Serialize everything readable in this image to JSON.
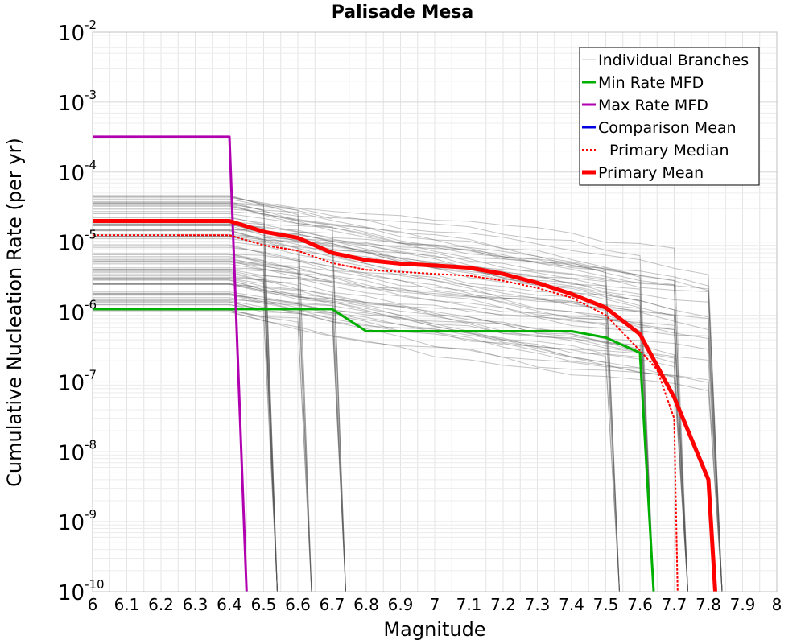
{
  "chart_data": {
    "type": "line",
    "title": "Palisade Mesa",
    "xlabel": "Magnitude",
    "ylabel": "Cumulative Nucleation Rate (per yr)",
    "xlim": [
      6.0,
      8.0
    ],
    "ylim": [
      1e-10,
      0.01
    ],
    "y_scale": "log",
    "grid": true,
    "legend_position": "top-right",
    "x_ticks": [
      "6",
      "6.1",
      "6.2",
      "6.3",
      "6.4",
      "6.5",
      "6.6",
      "6.7",
      "6.8",
      "6.9",
      "7",
      "7.1",
      "7.2",
      "7.3",
      "7.4",
      "7.5",
      "7.6",
      "7.7",
      "7.8",
      "7.9",
      "8"
    ],
    "y_ticks": [
      {
        "base": "10",
        "exp": "-10"
      },
      {
        "base": "10",
        "exp": "-9"
      },
      {
        "base": "10",
        "exp": "-8"
      },
      {
        "base": "10",
        "exp": "-7"
      },
      {
        "base": "10",
        "exp": "-6"
      },
      {
        "base": "10",
        "exp": "-5"
      },
      {
        "base": "10",
        "exp": "-4"
      },
      {
        "base": "10",
        "exp": "-3"
      },
      {
        "base": "10",
        "exp": "-2"
      }
    ],
    "series": [
      {
        "name": "Individual Branches",
        "color": "#c8c8c8",
        "style": "thin",
        "x": [],
        "y": []
      },
      {
        "name": "Min Rate MFD",
        "color": "#00b000",
        "style": "solid",
        "x": [
          6.0,
          6.7,
          6.8,
          7.4,
          7.5,
          7.6,
          7.64
        ],
        "y": [
          1.1e-06,
          1.1e-06,
          5.3e-07,
          5.3e-07,
          4.3e-07,
          2.6e-07,
          1e-10
        ]
      },
      {
        "name": "Max Rate MFD",
        "color": "#b000b0",
        "style": "solid",
        "x": [
          6.0,
          6.4,
          6.45
        ],
        "y": [
          0.00032,
          0.00032,
          1e-10
        ]
      },
      {
        "name": "Comparison Mean",
        "color": "#0000e0",
        "style": "solid",
        "x": [],
        "y": []
      },
      {
        "name": "Primary Median",
        "color": "#ff0000",
        "style": "dotted",
        "x": [
          6.0,
          6.4,
          6.5,
          6.6,
          6.7,
          6.8,
          7.0,
          7.1,
          7.2,
          7.3,
          7.4,
          7.5,
          7.6,
          7.65,
          7.7,
          7.71
        ],
        "y": [
          1.25e-05,
          1.25e-05,
          9e-06,
          7.5e-06,
          5e-06,
          4e-06,
          3.5e-06,
          3.3e-06,
          2.8e-06,
          2.2e-06,
          1.6e-06,
          9e-07,
          2.8e-07,
          1.5e-07,
          3e-08,
          1e-10
        ]
      },
      {
        "name": "Primary Mean",
        "color": "#ff0000",
        "style": "thick",
        "x": [
          6.0,
          6.4,
          6.5,
          6.6,
          6.7,
          6.8,
          6.9,
          7.0,
          7.1,
          7.2,
          7.3,
          7.4,
          7.5,
          7.6,
          7.7,
          7.8,
          7.82
        ],
        "y": [
          2e-05,
          2e-05,
          1.4e-05,
          1.15e-05,
          7e-06,
          5.5e-06,
          4.9e-06,
          4.6e-06,
          4.3e-06,
          3.5e-06,
          2.6e-06,
          1.8e-06,
          1.15e-06,
          4.8e-07,
          6e-08,
          4e-09,
          1e-10
        ]
      }
    ]
  }
}
